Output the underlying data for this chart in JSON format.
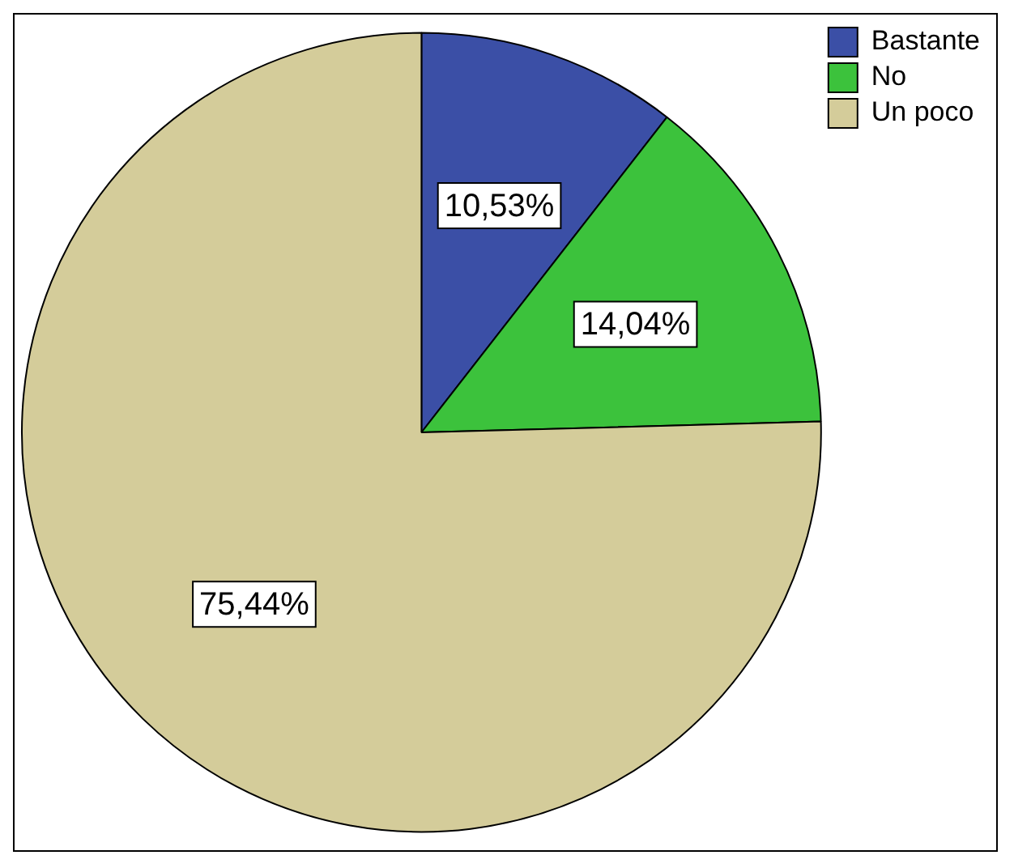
{
  "chart_data": {
    "type": "pie",
    "categories": [
      "Bastante",
      "No",
      "Un poco"
    ],
    "values": [
      10.53,
      14.04,
      75.44
    ],
    "colors": [
      "#3b4fa6",
      "#3cc23c",
      "#d4cc9a"
    ],
    "value_labels": [
      "10,53%",
      "14,04%",
      "75,44%"
    ],
    "legend": "top right"
  }
}
